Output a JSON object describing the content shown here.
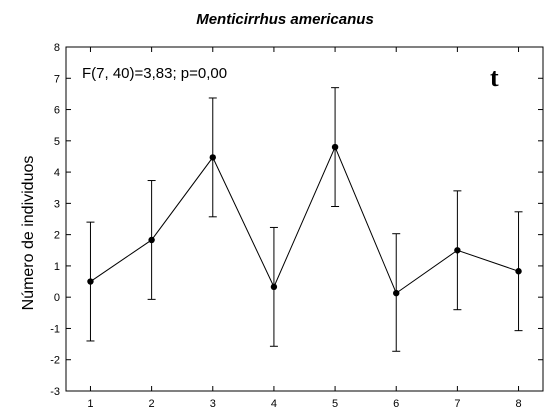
{
  "chart_data": {
    "type": "line",
    "title": "Menticirrhus americanus",
    "ylabel": "Número de individuos",
    "xlabel": "",
    "annotation": "F(7, 40)=3,83; p=0,00",
    "panel_label": "t",
    "x": [
      1,
      2,
      3,
      4,
      5,
      6,
      7,
      8
    ],
    "xlim": [
      0.6,
      8.4
    ],
    "ylim": [
      -3,
      8
    ],
    "yticks": [
      -3,
      -2,
      -1,
      0,
      1,
      2,
      3,
      4,
      5,
      6,
      7,
      8
    ],
    "series": [
      {
        "mean": [
          0.5,
          1.83,
          4.47,
          0.33,
          4.8,
          0.13,
          1.5,
          0.83
        ],
        "lower": [
          -1.4,
          -0.07,
          2.57,
          -1.57,
          2.9,
          -1.73,
          -0.4,
          -1.07
        ],
        "upper": [
          2.4,
          3.73,
          6.37,
          2.23,
          6.7,
          2.03,
          3.4,
          2.73
        ]
      }
    ],
    "grid": false
  }
}
